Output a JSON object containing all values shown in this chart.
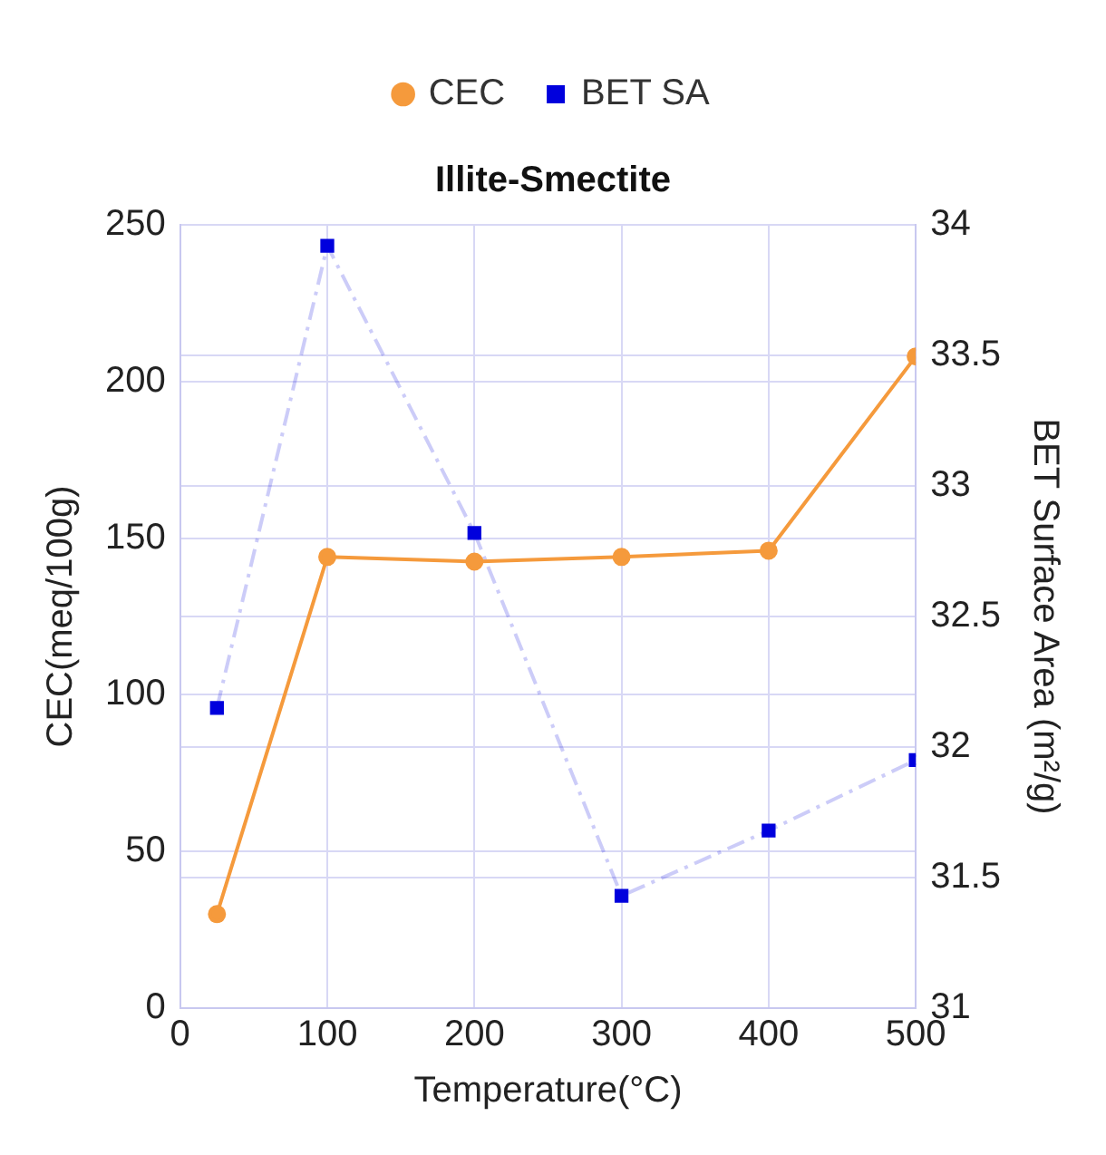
{
  "chart_data": {
    "type": "line",
    "title": "Illite-Smectite",
    "xlabel": "Temperature(°C)",
    "ylabel": "CEC(meq/100g)",
    "y2label": "BET Surface Area (m²/g)",
    "x": [
      25,
      100,
      200,
      300,
      400,
      500
    ],
    "series": [
      {
        "name": "CEC",
        "color": "#f59a3c",
        "values": [
          30,
          144,
          142.5,
          144,
          146,
          208
        ],
        "marker": "circle",
        "line_style": "solid"
      },
      {
        "name": "BET SA",
        "color": "#0000dd",
        "values": [
          32.15,
          33.92,
          32.82,
          31.43,
          31.68,
          31.95
        ],
        "axis": "y2",
        "marker": "square",
        "line_style": "dashed"
      }
    ],
    "xlim": [
      0,
      500
    ],
    "xticks": [
      0,
      100,
      200,
      300,
      400,
      500
    ],
    "ylim": [
      0,
      250
    ],
    "yticks": [
      0,
      50,
      100,
      150,
      200,
      250
    ],
    "y2lim": [
      31,
      34
    ],
    "y2ticks": [
      31,
      31.5,
      32,
      32.5,
      33,
      33.5,
      34
    ],
    "grid": true,
    "legend": "top"
  }
}
